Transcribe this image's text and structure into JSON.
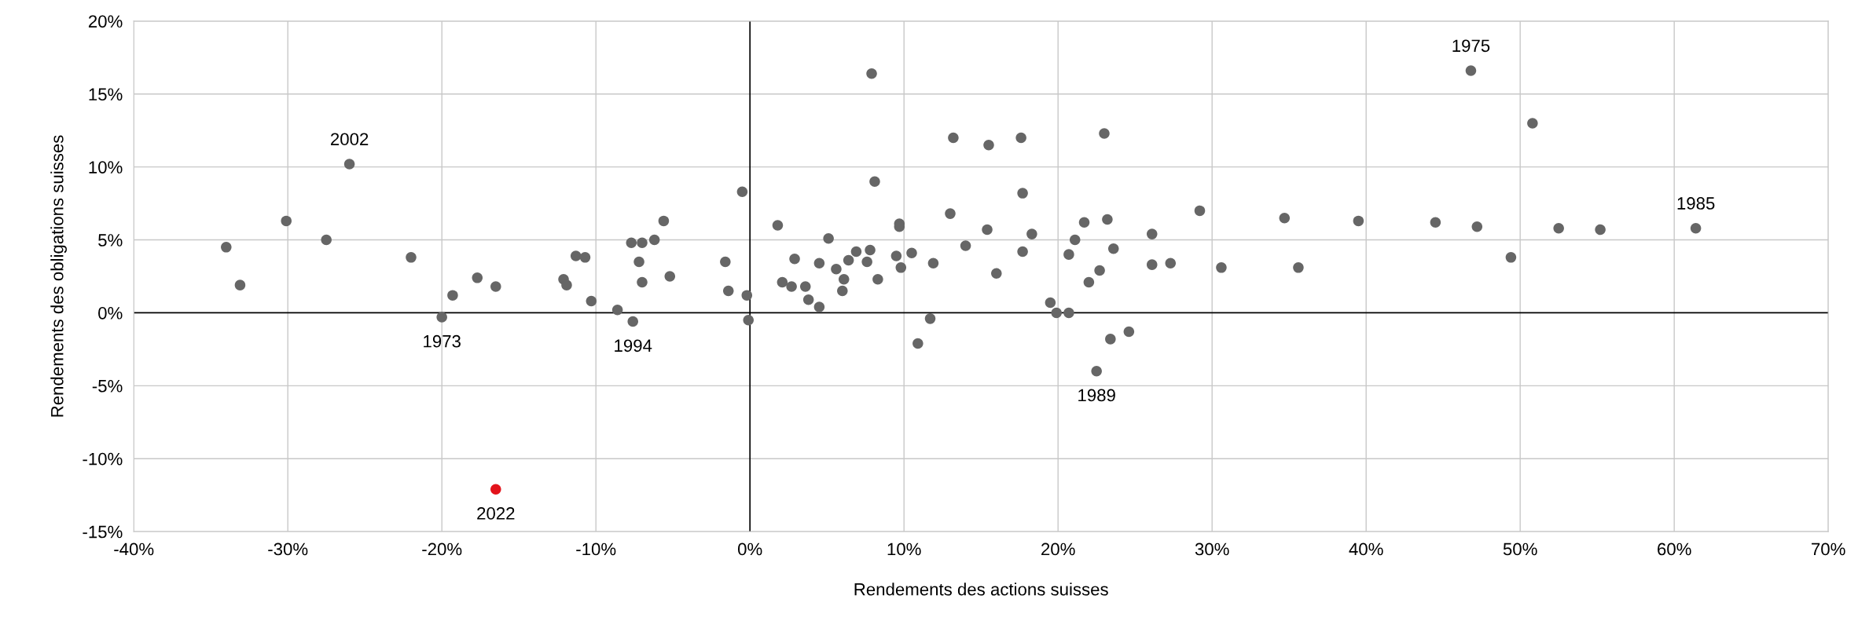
{
  "chart_data": {
    "type": "scatter",
    "xlabel": "Rendements des actions suisses",
    "ylabel": "Rendements des obligations suisses",
    "xlim": [
      -40,
      70
    ],
    "ylim": [
      -15,
      20
    ],
    "xticks": [
      {
        "value": -40,
        "label": "-40%"
      },
      {
        "value": -30,
        "label": "-30%"
      },
      {
        "value": -20,
        "label": "-20%"
      },
      {
        "value": -10,
        "label": "-10%"
      },
      {
        "value": 0,
        "label": "0%"
      },
      {
        "value": 10,
        "label": "10%"
      },
      {
        "value": 20,
        "label": "20%"
      },
      {
        "value": 30,
        "label": "30%"
      },
      {
        "value": 40,
        "label": "40%"
      },
      {
        "value": 50,
        "label": "50%"
      },
      {
        "value": 60,
        "label": "60%"
      },
      {
        "value": 70,
        "label": "70%"
      }
    ],
    "yticks": [
      {
        "value": -15,
        "label": "-15%"
      },
      {
        "value": -10,
        "label": "-10%"
      },
      {
        "value": -5,
        "label": "-5%"
      },
      {
        "value": 0,
        "label": "0%"
      },
      {
        "value": 5,
        "label": "5%"
      },
      {
        "value": 10,
        "label": "10%"
      },
      {
        "value": 15,
        "label": "15%"
      },
      {
        "value": 20,
        "label": "20%"
      }
    ],
    "grid": true,
    "marker": "circle",
    "series": [
      {
        "x": [
          -34.0,
          -33.1,
          -30.1,
          -26.0,
          -27.5,
          -22.0,
          -20.0,
          -19.3,
          -17.7,
          -16.5,
          -16.5,
          -12.1,
          -11.9,
          -11.3,
          -10.7,
          -10.3,
          -8.6,
          -7.7,
          -7.6,
          -7.0,
          -7.2,
          -7.0,
          -6.2,
          -5.6,
          -5.2,
          -1.6,
          -1.4,
          -0.5,
          -0.2,
          -0.1,
          1.8,
          2.1,
          2.7,
          2.9,
          3.6,
          3.8,
          4.5,
          4.5,
          5.1,
          5.6,
          6.0,
          6.1,
          6.4,
          6.9,
          7.6,
          7.8,
          7.9,
          8.1,
          8.3,
          9.5,
          9.7,
          9.7,
          9.8,
          10.5,
          10.9,
          11.7,
          11.9,
          13.0,
          13.2,
          14.0,
          15.4,
          15.5,
          16.0,
          17.6,
          17.7,
          17.7,
          18.3,
          19.5,
          19.9,
          20.7,
          20.7,
          21.1,
          21.7,
          22.0,
          22.5,
          22.7,
          23.0,
          23.2,
          23.4,
          23.6,
          24.6,
          26.1,
          26.1,
          27.3,
          29.2,
          30.6,
          34.7,
          35.6,
          39.5,
          44.5,
          46.8,
          47.2,
          49.4,
          50.8,
          52.5,
          55.2,
          61.4
        ],
        "values": [
          4.5,
          1.9,
          6.3,
          10.2,
          5.0,
          3.8,
          -0.3,
          1.2,
          2.4,
          1.8,
          -12.1,
          2.3,
          1.9,
          3.9,
          3.8,
          0.8,
          0.2,
          4.8,
          -0.6,
          4.8,
          3.5,
          2.1,
          5.0,
          6.3,
          2.5,
          3.5,
          1.5,
          8.3,
          1.2,
          -0.5,
          6.0,
          2.1,
          1.8,
          3.7,
          1.8,
          0.9,
          0.4,
          3.4,
          5.1,
          3.0,
          1.5,
          2.3,
          3.6,
          4.2,
          3.5,
          4.3,
          16.4,
          9.0,
          2.3,
          3.9,
          6.1,
          5.9,
          3.1,
          4.1,
          -2.1,
          -0.4,
          3.4,
          6.8,
          12.0,
          4.6,
          5.7,
          11.5,
          2.7,
          12.0,
          8.2,
          4.2,
          5.4,
          0.7,
          0.0,
          0.0,
          4.0,
          5.0,
          6.2,
          2.1,
          -4.0,
          2.9,
          12.3,
          6.4,
          -1.8,
          4.4,
          -1.3,
          5.4,
          3.3,
          3.4,
          7.0,
          3.1,
          6.5,
          3.1,
          6.3,
          6.2,
          16.6,
          5.9,
          3.8,
          13.0,
          5.8,
          5.7,
          5.8
        ],
        "colors": [
          "#666666",
          "#666666",
          "#666666",
          "#666666",
          "#666666",
          "#666666",
          "#666666",
          "#666666",
          "#666666",
          "#666666",
          "#e3131b",
          "#666666",
          "#666666",
          "#666666",
          "#666666",
          "#666666",
          "#666666",
          "#666666",
          "#666666",
          "#666666",
          "#666666",
          "#666666",
          "#666666",
          "#666666",
          "#666666",
          "#666666",
          "#666666",
          "#666666",
          "#666666",
          "#666666",
          "#666666",
          "#666666",
          "#666666",
          "#666666",
          "#666666",
          "#666666",
          "#666666",
          "#666666",
          "#666666",
          "#666666",
          "#666666",
          "#666666",
          "#666666",
          "#666666",
          "#666666",
          "#666666",
          "#666666",
          "#666666",
          "#666666",
          "#666666",
          "#666666",
          "#666666",
          "#666666",
          "#666666",
          "#666666",
          "#666666",
          "#666666",
          "#666666",
          "#666666",
          "#666666",
          "#666666",
          "#666666",
          "#666666",
          "#666666",
          "#666666",
          "#666666",
          "#666666",
          "#666666",
          "#666666",
          "#666666",
          "#666666",
          "#666666",
          "#666666",
          "#666666",
          "#666666",
          "#666666",
          "#666666",
          "#666666",
          "#666666",
          "#666666",
          "#666666",
          "#666666",
          "#666666",
          "#666666",
          "#666666",
          "#666666",
          "#666666",
          "#666666",
          "#666666",
          "#666666",
          "#666666",
          "#666666",
          "#666666",
          "#666666",
          "#666666",
          "#666666",
          "#666666"
        ]
      }
    ],
    "annotations": [
      {
        "text": "2002",
        "x": -26.0,
        "y": 10.2
      },
      {
        "text": "1973",
        "x": -20.0,
        "y": -0.3
      },
      {
        "text": "1994",
        "x": -7.6,
        "y": -0.6
      },
      {
        "text": "2022",
        "x": -16.5,
        "y": -12.1
      },
      {
        "text": "1989",
        "x": 22.5,
        "y": -4.0
      },
      {
        "text": "1975",
        "x": 46.8,
        "y": 16.6
      },
      {
        "text": "1985",
        "x": 61.4,
        "y": 5.8
      }
    ]
  }
}
